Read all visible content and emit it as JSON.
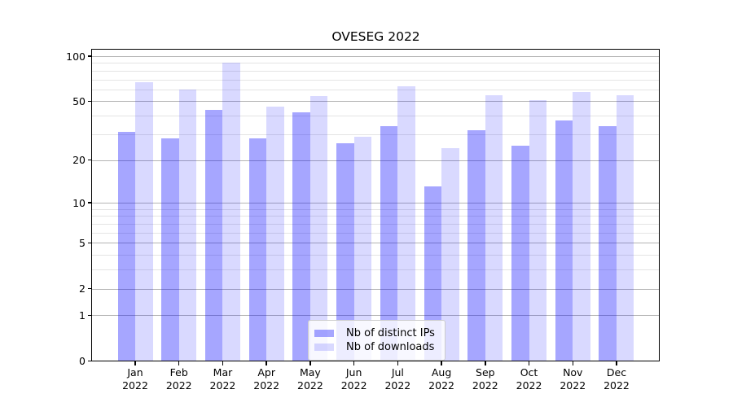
{
  "chart_data": {
    "type": "bar",
    "title": "OVESEG 2022",
    "categories": [
      "Jan 2022",
      "Feb 2022",
      "Mar 2022",
      "Apr 2022",
      "May 2022",
      "Jun 2022",
      "Jul 2022",
      "Aug 2022",
      "Sep 2022",
      "Oct 2022",
      "Nov 2022",
      "Dec 2022"
    ],
    "months": [
      "Jan",
      "Feb",
      "Mar",
      "Apr",
      "May",
      "Jun",
      "Jul",
      "Aug",
      "Sep",
      "Oct",
      "Nov",
      "Dec"
    ],
    "year": "2022",
    "series": [
      {
        "name": "Nb of distinct IPs",
        "color": "rgba(0,0,255,0.35)",
        "values": [
          31,
          28,
          44,
          28,
          42,
          26,
          34,
          13,
          32,
          25,
          37,
          34
        ]
      },
      {
        "name": "Nb of downloads",
        "color": "rgba(0,0,255,0.15)",
        "values": [
          67,
          60,
          90,
          46,
          54,
          29,
          63,
          24,
          55,
          51,
          58,
          55
        ]
      }
    ],
    "xlabel": "",
    "ylabel": "",
    "yaxis": {
      "scale": "log1p",
      "ticks": [
        0,
        1,
        2,
        5,
        10,
        20,
        50,
        100
      ],
      "minor_ticks": [
        3,
        4,
        6,
        7,
        8,
        9,
        30,
        40,
        60,
        70,
        80,
        90
      ],
      "range": [
        0,
        110
      ]
    },
    "grid": {
      "major_color": "#b4b4b4",
      "minor_color": "#e4e4e4",
      "visible": true
    },
    "legend": {
      "position": "lower center",
      "entries": [
        "Nb of distinct IPs",
        "Nb of downloads"
      ]
    }
  }
}
